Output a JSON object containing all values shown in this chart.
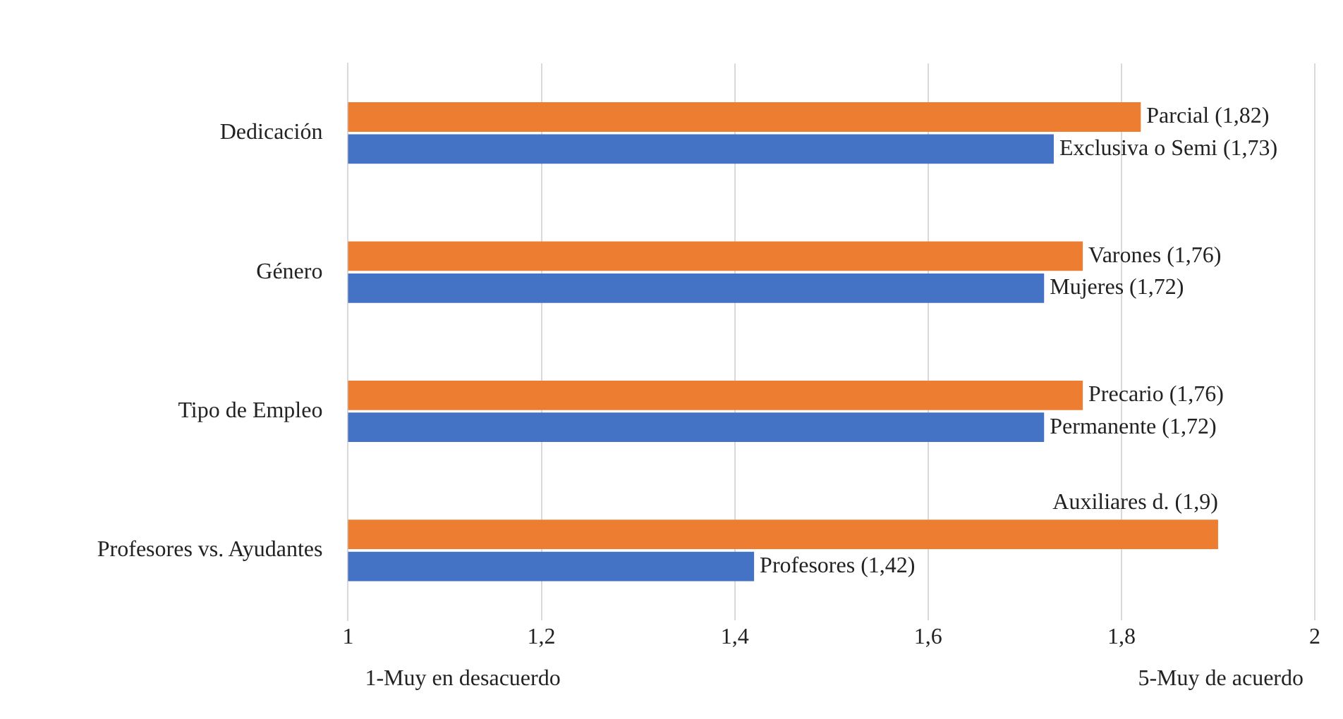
{
  "chart_data": {
    "type": "bar",
    "orientation": "horizontal",
    "categories": [
      "Dedicación",
      "Género",
      "Tipo de Empleo",
      "Profesores vs. Ayudantes"
    ],
    "series": [
      {
        "color": "#ed7d31",
        "values": [
          1.82,
          1.76,
          1.76,
          1.9
        ],
        "value_labels": [
          "Parcial (1,82)",
          "Varones (1,76)",
          "Precario (1,76)",
          "Auxiliares d. (1,9)"
        ]
      },
      {
        "color": "#4472c4",
        "values": [
          1.73,
          1.72,
          1.72,
          1.42
        ],
        "value_labels": [
          "Exclusiva o Semi (1,73)",
          "Mujeres (1,72)",
          "Permanente (1,72)",
          "Profesores (1,42)"
        ]
      }
    ],
    "xlim": [
      1,
      2
    ],
    "xticks": [
      1,
      {
        "value": 1.2,
        "label": "1,2"
      },
      {
        "value": 1.4,
        "label": "1,4"
      },
      {
        "value": 1.6,
        "label": "1,6"
      },
      {
        "value": 1.8,
        "label": "1,8"
      },
      2
    ],
    "grid": "x",
    "legend": false,
    "annotations": [
      "1-Muy en desacuerdo",
      "5-Muy de acuerdo"
    ]
  }
}
